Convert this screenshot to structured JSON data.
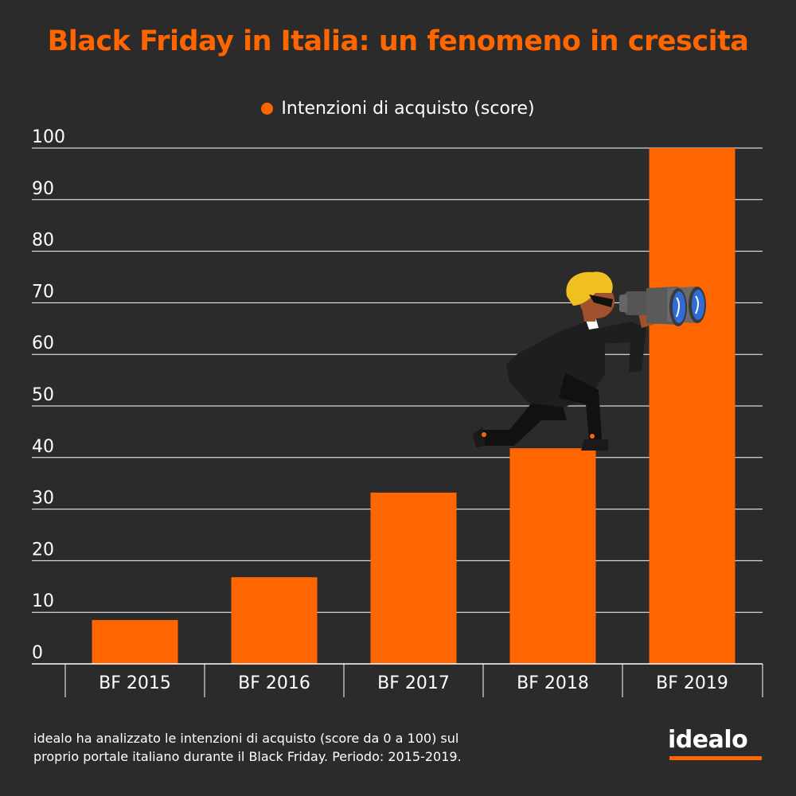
{
  "title": "Black Friday in Italia: un fenomeno in crescita",
  "legend": {
    "label": "Intenzioni di acquisto (score)"
  },
  "colors": {
    "background": "#2b2b2b",
    "accent": "#ff6600",
    "text": "#ffffff"
  },
  "chart_data": {
    "type": "bar",
    "categories": [
      "BF 2015",
      "BF 2016",
      "BF 2017",
      "BF 2018",
      "BF 2019"
    ],
    "series": [
      {
        "name": "Intenzioni di acquisto (score)",
        "values": [
          8.5,
          16.8,
          33.2,
          41.8,
          100
        ]
      }
    ],
    "title": "Black Friday in Italia: un fenomeno in crescita",
    "xlabel": "",
    "ylabel": "",
    "ylim": [
      0,
      100
    ],
    "yticks": [
      0,
      10,
      20,
      30,
      40,
      50,
      60,
      70,
      80,
      90,
      100
    ],
    "grid": true,
    "legend_position": "top-center"
  },
  "illustration": {
    "subject": "person-with-binoculars-icon"
  },
  "footnote": {
    "line1": "idealo ha analizzato le intenzioni di acquisto (score da 0 a 100) sul",
    "line2": "proprio portale italiano durante il Black Friday. Periodo: 2015-2019."
  },
  "logo": {
    "text": "idealo"
  }
}
